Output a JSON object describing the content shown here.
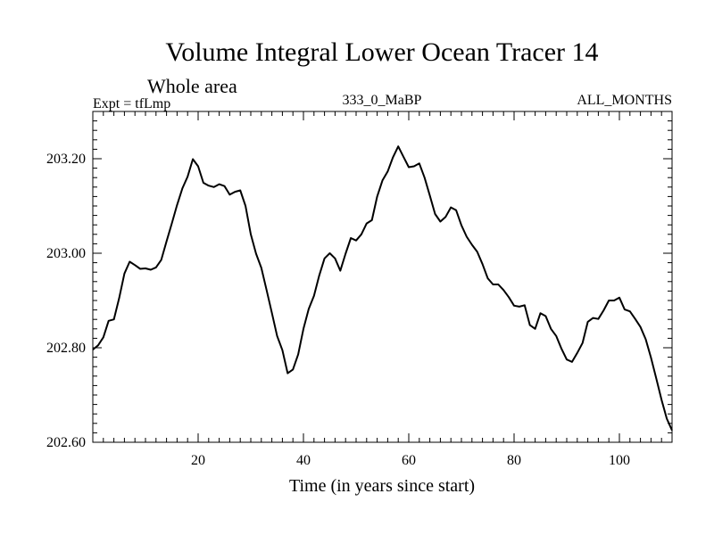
{
  "chart_data": {
    "type": "line",
    "title": "Volume Integral Lower Ocean Tracer 14",
    "subtitle": "Whole area",
    "left_label": "Expt = tfLmp",
    "center_label": "333_0_MaBP",
    "right_label": "ALL_MONTHS",
    "xlabel": "Time (in years since start)",
    "ylabel": "",
    "xlim": [
      0,
      110
    ],
    "ylim": [
      202.6,
      203.3
    ],
    "x_ticks": [
      20,
      40,
      60,
      80,
      100
    ],
    "x_tick_labels": [
      "20",
      "40",
      "60",
      "80",
      "100"
    ],
    "y_ticks": [
      202.6,
      202.8,
      203.0,
      203.2
    ],
    "y_tick_labels": [
      "202.60",
      "202.80",
      "203.00",
      "203.20"
    ],
    "grid": false,
    "series": [
      {
        "name": "Volume Integral Lower Ocean Tracer 14",
        "color": "#000000",
        "x": [
          0,
          1,
          2,
          3,
          4,
          5,
          6,
          7,
          8,
          9,
          10,
          11,
          12,
          13,
          14,
          15,
          16,
          17,
          18,
          19,
          20,
          21,
          22,
          23,
          24,
          25,
          26,
          27,
          28,
          29,
          30,
          31,
          32,
          33,
          34,
          35,
          36,
          37,
          38,
          39,
          40,
          41,
          42,
          43,
          44,
          45,
          46,
          47,
          48,
          49,
          50,
          51,
          52,
          53,
          54,
          55,
          56,
          57,
          58,
          59,
          60,
          61,
          62,
          63,
          64,
          65,
          66,
          67,
          68,
          69,
          70,
          71,
          72,
          73,
          74,
          75,
          76,
          77,
          78,
          79,
          80,
          81,
          82,
          83,
          84,
          85,
          86,
          87,
          88,
          89,
          90,
          91,
          92,
          93,
          94,
          95,
          96,
          97,
          98,
          99,
          100,
          101,
          102,
          103,
          104,
          105,
          106,
          107,
          108,
          109,
          110
        ],
        "values": [
          202.796,
          202.805,
          202.822,
          202.857,
          202.86,
          202.905,
          202.957,
          202.982,
          202.975,
          202.967,
          202.968,
          202.965,
          202.97,
          202.986,
          203.025,
          203.063,
          203.102,
          203.137,
          203.162,
          203.199,
          203.184,
          203.149,
          203.143,
          203.14,
          203.146,
          203.142,
          203.124,
          203.13,
          203.133,
          203.1,
          203.04,
          202.999,
          202.969,
          202.922,
          202.874,
          202.825,
          202.795,
          202.746,
          202.754,
          202.786,
          202.84,
          202.882,
          202.91,
          202.953,
          202.989,
          203.0,
          202.989,
          202.963,
          202.999,
          203.032,
          203.027,
          203.04,
          203.063,
          203.07,
          203.12,
          203.154,
          203.173,
          203.203,
          203.226,
          203.204,
          203.182,
          203.184,
          203.19,
          203.16,
          203.122,
          203.083,
          203.067,
          203.077,
          203.097,
          203.091,
          203.059,
          203.035,
          203.018,
          203.003,
          202.977,
          202.947,
          202.934,
          202.934,
          202.922,
          202.907,
          202.889,
          202.887,
          202.89,
          202.848,
          202.84,
          202.873,
          202.867,
          202.84,
          202.825,
          202.798,
          202.775,
          202.77,
          202.789,
          202.81,
          202.855,
          202.863,
          202.861,
          202.879,
          202.9,
          202.9,
          202.906,
          202.881,
          202.877,
          202.861,
          202.844,
          202.818,
          202.779,
          202.735,
          202.69,
          202.65,
          202.625
        ]
      }
    ]
  }
}
